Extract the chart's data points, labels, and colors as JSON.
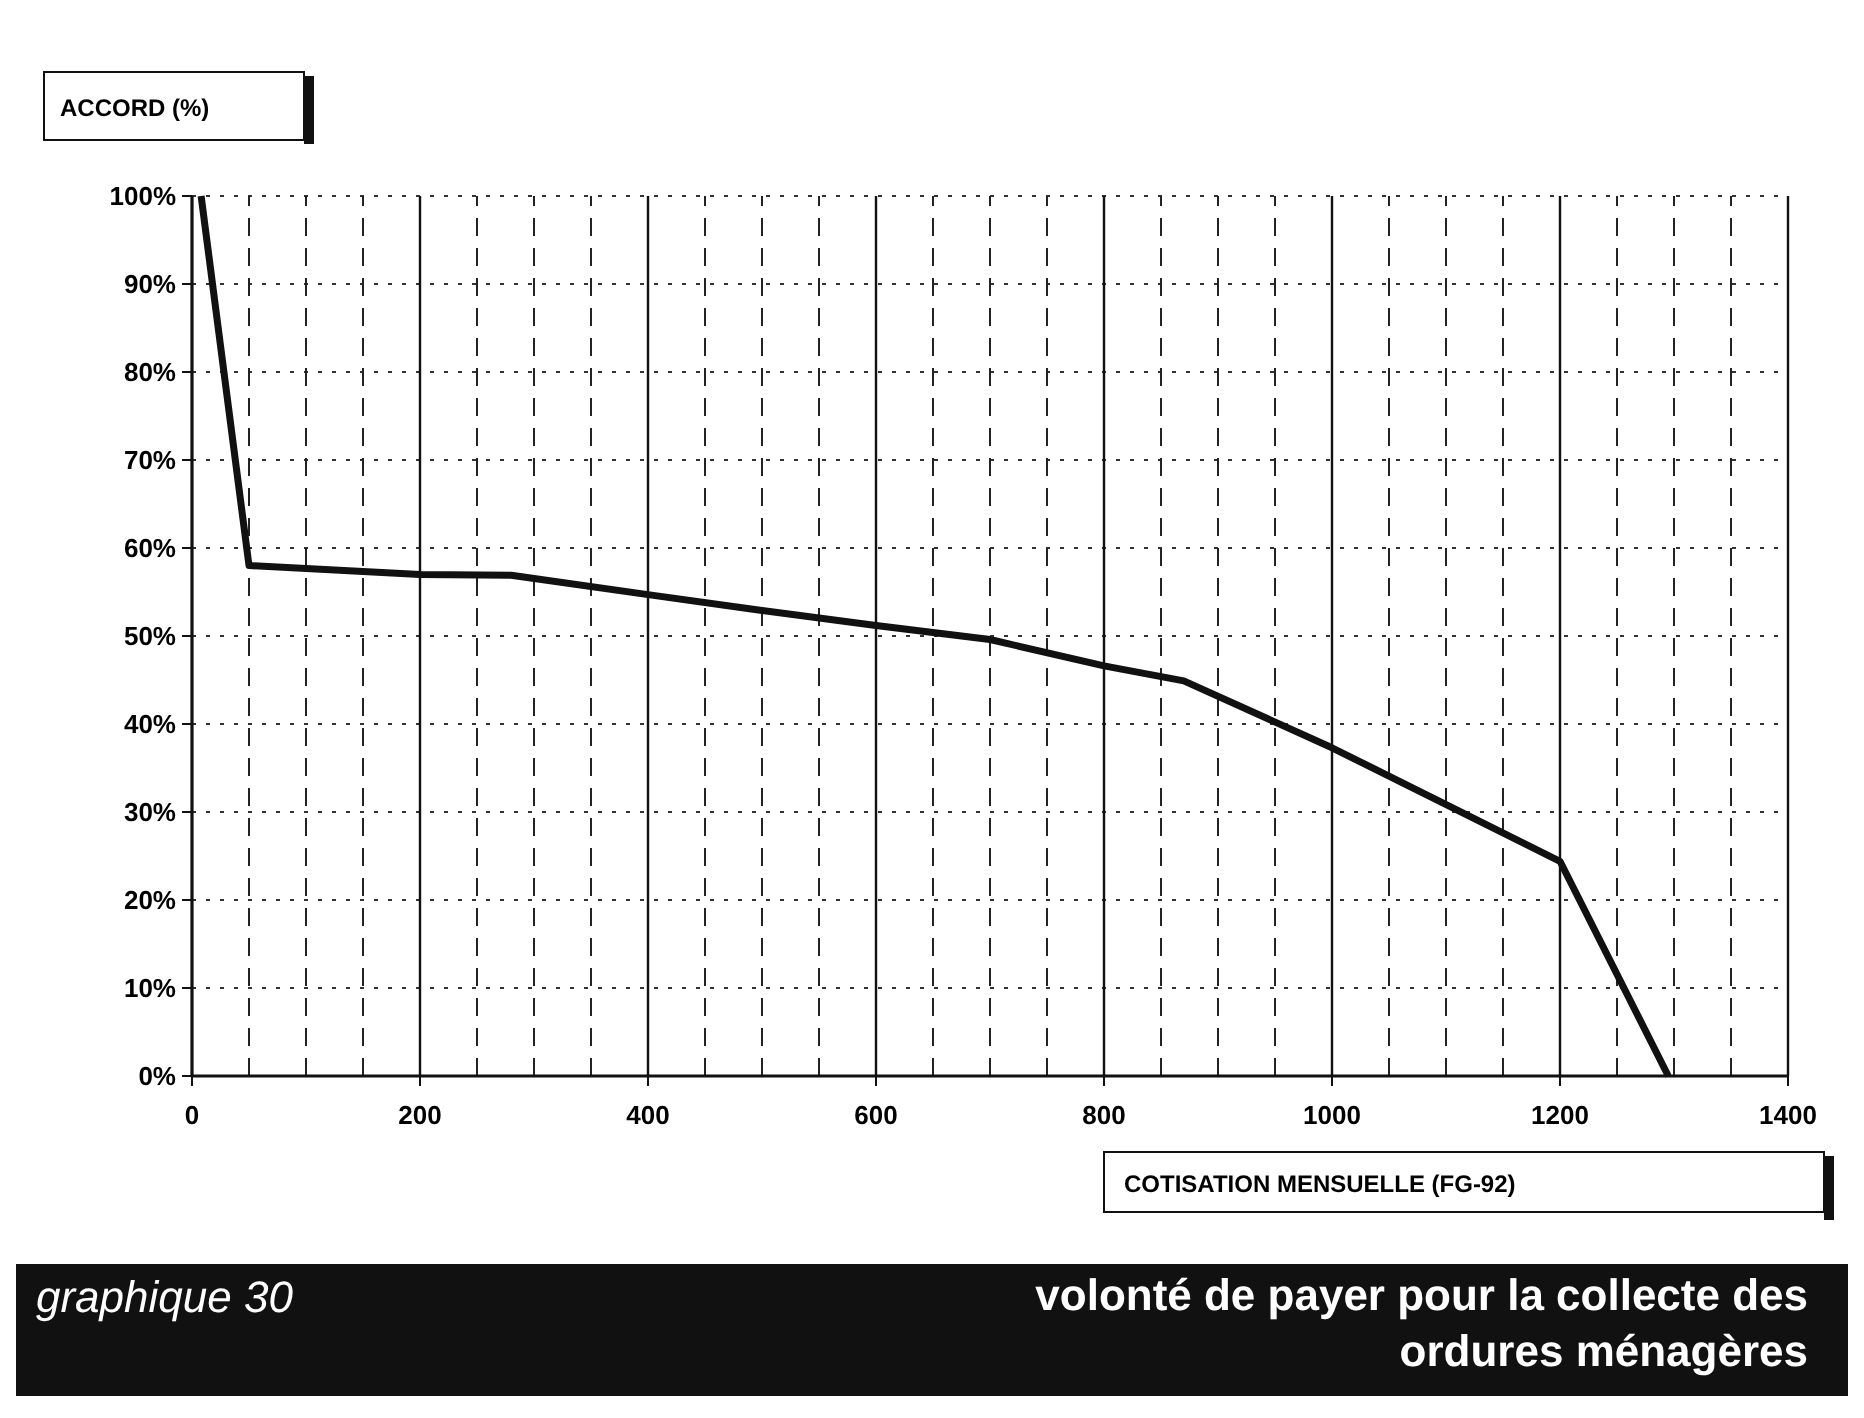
{
  "chart_data": {
    "type": "line",
    "title": "volonté de payer pour la collecte des ordures ménagères",
    "subtitle": "graphique 30",
    "xlabel": "COTISATION MENSUELLE (FG-92)",
    "ylabel": "ACCORD (%)",
    "x": [
      8,
      50,
      200,
      280,
      400,
      500,
      600,
      700,
      800,
      870,
      1000,
      1200,
      1295
    ],
    "series": [
      {
        "color": "#111111",
        "values": [
          100,
          58,
          57,
          56.9,
          54.7,
          52.9,
          51.2,
          49.6,
          46.6,
          44.9,
          37.3,
          24.4,
          0
        ]
      }
    ],
    "xlim": [
      0,
      1400
    ],
    "xticks": [
      0,
      200,
      400,
      600,
      800,
      1000,
      1200,
      1400
    ],
    "ylim": [
      0,
      100
    ],
    "yticks": [
      {
        "value": 0,
        "label": "0%"
      },
      {
        "value": 10,
        "label": "10%"
      },
      {
        "value": 20,
        "label": "20%"
      },
      {
        "value": 30,
        "label": "30%"
      },
      {
        "value": 40,
        "label": "40%"
      },
      {
        "value": 50,
        "label": "50%"
      },
      {
        "value": 60,
        "label": "60%"
      },
      {
        "value": 70,
        "label": "70%"
      },
      {
        "value": 80,
        "label": "80%"
      },
      {
        "value": 90,
        "label": "90%"
      },
      {
        "value": 100,
        "label": "100%"
      }
    ],
    "grid": true,
    "marker": "none",
    "line_style": "solid"
  }
}
